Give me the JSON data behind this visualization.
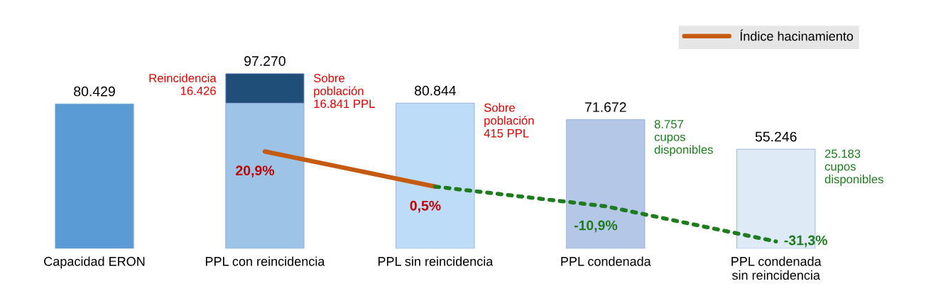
{
  "chart_data": {
    "type": "bar",
    "stacked": true,
    "categories": [
      "Capacidad ERON",
      "PPL con reincidencia",
      "PPL sin reincidencia",
      "PPL condenada",
      "PPL condenada\nsin reincidencia"
    ],
    "ylim": [
      0,
      125000
    ],
    "tick_labels": "x",
    "grid": false,
    "legend": "top right",
    "series": [
      {
        "colors": [
          "#5b9bd5",
          "#9dc3e6",
          "#bcdcf8",
          "#b4c7e7",
          "#deebf7"
        ],
        "values": [
          80429,
          80844,
          80844,
          71672,
          55246
        ],
        "value_labels": [
          "80.429",
          null,
          "80.844",
          "71.672",
          "55.246"
        ]
      },
      {
        "color": "#1f4e79",
        "values": [
          null,
          16426,
          null,
          null,
          null
        ]
      },
      {
        "type": "line",
        "axis": "y2",
        "name": "Índice hacinamiento",
        "color": "#c55a11",
        "line_style": "solid",
        "marker": "none",
        "values": [
          null,
          20.9,
          0.5,
          null,
          null
        ],
        "value_labels": [
          null,
          "20,9%",
          "0,5%",
          null,
          null
        ]
      },
      {
        "type": "line",
        "axis": "y2",
        "color": "#1e7b1e",
        "line_style": "dotted",
        "marker": "none",
        "values": [
          null,
          null,
          0.5,
          -10.9,
          -31.3
        ],
        "value_labels": [
          null,
          null,
          null,
          "-10,9%",
          "-31,3%"
        ]
      }
    ],
    "totals": [
      null,
      "97.270",
      null,
      null,
      null
    ],
    "annotations": [
      "Reincidencia\n16.426",
      "Sobre\npoblación\n16.841 PPL",
      "Sobre\npoblación\n415 PPL",
      "8.757\ncupos\ndisponibles",
      "25.183\ncupos\ndisponibles"
    ]
  }
}
